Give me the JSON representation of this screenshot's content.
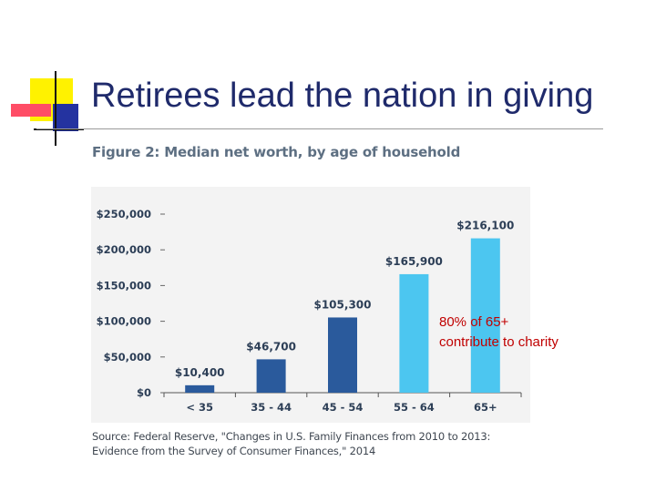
{
  "slide": {
    "title": "Retirees lead the nation in giving",
    "annotation_line1": "80% of 65+",
    "annotation_line2": "contribute to charity"
  },
  "figure": {
    "title": "Figure 2: Median net worth, by age of household",
    "source_line1": "Source: Federal Reserve, \"Changes in U.S. Family Finances from 2010 to 2013:",
    "source_line2": "Evidence from the Survey of Consumer Finances,\" 2014"
  },
  "colors": {
    "dark_bar": "#2a5a9c",
    "light_bar": "#4cc6f0",
    "title_text": "#1f2a6b",
    "annotation": "#c00000"
  },
  "chart_data": {
    "type": "bar",
    "title": "Figure 2: Median net worth, by age of household",
    "xlabel": "",
    "ylabel": "",
    "categories": [
      "< 35",
      "35 - 44",
      "45 - 54",
      "55 - 64",
      "65+"
    ],
    "values": [
      10400,
      46700,
      105300,
      165900,
      216100
    ],
    "value_labels": [
      "$10,400",
      "$46,700",
      "$105,300",
      "$165,900",
      "$216,100"
    ],
    "bar_colors": [
      "#2a5a9c",
      "#2a5a9c",
      "#2a5a9c",
      "#4cc6f0",
      "#4cc6f0"
    ],
    "y_ticks": [
      0,
      50000,
      100000,
      150000,
      200000,
      250000
    ],
    "y_tick_labels": [
      "$0",
      "$50,000",
      "$100,000",
      "$150,000",
      "$200,000",
      "$250,000"
    ],
    "ylim": [
      0,
      250000
    ],
    "grid": false,
    "legend": "none"
  }
}
